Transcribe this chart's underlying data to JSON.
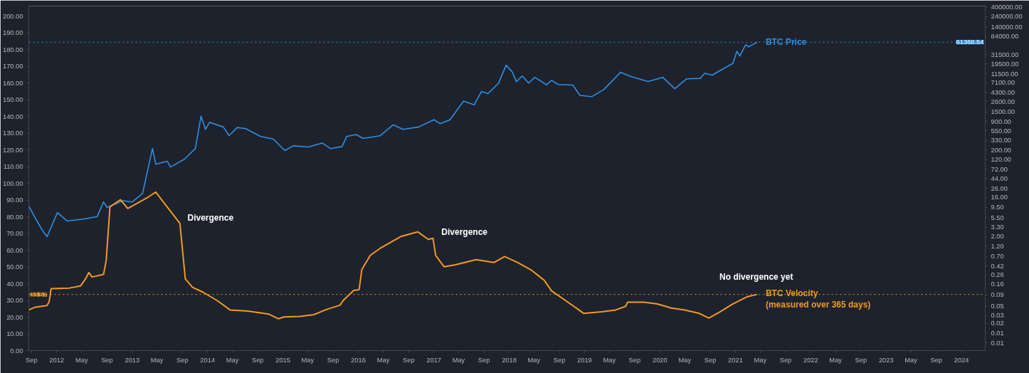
{
  "chart_data": {
    "type": "line",
    "xlim": [
      "2011-08-19",
      "2024-04-25"
    ],
    "xticks": [
      {
        "value": "2011-09",
        "label": "Sep"
      },
      {
        "value": "2012-01",
        "label": "2012"
      },
      {
        "value": "2012-05",
        "label": "May"
      },
      {
        "value": "2012-09",
        "label": "Sep"
      },
      {
        "value": "2013-01",
        "label": "2013"
      },
      {
        "value": "2013-05",
        "label": "May"
      },
      {
        "value": "2013-09",
        "label": "Sep"
      },
      {
        "value": "2014-01",
        "label": "2014"
      },
      {
        "value": "2014-05",
        "label": "May"
      },
      {
        "value": "2014-09",
        "label": "Sep"
      },
      {
        "value": "2015-01",
        "label": "2015"
      },
      {
        "value": "2015-05",
        "label": "May"
      },
      {
        "value": "2015-09",
        "label": "Sep"
      },
      {
        "value": "2016-01",
        "label": "2016"
      },
      {
        "value": "2016-05",
        "label": "May"
      },
      {
        "value": "2016-09",
        "label": "Sep"
      },
      {
        "value": "2017-01",
        "label": "2017"
      },
      {
        "value": "2017-05",
        "label": "May"
      },
      {
        "value": "2017-09",
        "label": "Sep"
      },
      {
        "value": "2018-01",
        "label": "2018"
      },
      {
        "value": "2018-05",
        "label": "May"
      },
      {
        "value": "2018-09",
        "label": "Sep"
      },
      {
        "value": "2019-01",
        "label": "2019"
      },
      {
        "value": "2019-05",
        "label": "May"
      },
      {
        "value": "2019-09",
        "label": "Sep"
      },
      {
        "value": "2020-01",
        "label": "2020"
      },
      {
        "value": "2020-05",
        "label": "May"
      },
      {
        "value": "2020-09",
        "label": "Sep"
      },
      {
        "value": "2021-01",
        "label": "2021"
      },
      {
        "value": "2021-05",
        "label": "May"
      },
      {
        "value": "2021-09",
        "label": "Sep"
      },
      {
        "value": "2022-01",
        "label": "2022"
      },
      {
        "value": "2022-05",
        "label": "May"
      },
      {
        "value": "2022-09",
        "label": "Sep"
      },
      {
        "value": "2023-01",
        "label": "2023"
      },
      {
        "value": "2023-05",
        "label": "May"
      },
      {
        "value": "2023-09",
        "label": "Sep"
      },
      {
        "value": "2024-01",
        "label": "2024"
      }
    ],
    "ylim": [
      0,
      206
    ],
    "yticks": [
      {
        "value": 0,
        "label": "0.00"
      },
      {
        "value": 10,
        "label": "10.00"
      },
      {
        "value": 20,
        "label": "20.00"
      },
      {
        "value": 30,
        "label": "30.00"
      },
      {
        "value": 40,
        "label": "40.00"
      },
      {
        "value": 50,
        "label": "50.00"
      },
      {
        "value": 60,
        "label": "60.00"
      },
      {
        "value": 70,
        "label": "70.00"
      },
      {
        "value": 80,
        "label": "80.00"
      },
      {
        "value": 90,
        "label": "90.00"
      },
      {
        "value": 100,
        "label": "100.00"
      },
      {
        "value": 110,
        "label": "110.00"
      },
      {
        "value": 120,
        "label": "120.00"
      },
      {
        "value": 130,
        "label": "130.00"
      },
      {
        "value": 140,
        "label": "140.00"
      },
      {
        "value": 150,
        "label": "150.00"
      },
      {
        "value": 160,
        "label": "160.00"
      },
      {
        "value": 170,
        "label": "170.00"
      },
      {
        "value": 180,
        "label": "180.00"
      },
      {
        "value": 190,
        "label": "190.00"
      },
      {
        "value": 200,
        "label": "200.00"
      }
    ],
    "y2lim": [
      0.0047,
      420000
    ],
    "y2ticks": [
      {
        "value": 400000,
        "label": "400000.00"
      },
      {
        "value": 240000,
        "label": "240000.00"
      },
      {
        "value": 140000,
        "label": "140000.00"
      },
      {
        "value": 84000,
        "label": "84000.00"
      },
      {
        "value": 31500,
        "label": "31500.00"
      },
      {
        "value": 19500,
        "label": "19500.00"
      },
      {
        "value": 11500,
        "label": "11500.00"
      },
      {
        "value": 7100,
        "label": "7100.00"
      },
      {
        "value": 4300,
        "label": "4300.00"
      },
      {
        "value": 2600,
        "label": "2600.00"
      },
      {
        "value": 1500,
        "label": "1500.00"
      },
      {
        "value": 900,
        "label": "900.00"
      },
      {
        "value": 550,
        "label": "550.00"
      },
      {
        "value": 330,
        "label": "330.00"
      },
      {
        "value": 200,
        "label": "200.00"
      },
      {
        "value": 120,
        "label": "120.00"
      },
      {
        "value": 72,
        "label": "72.00"
      },
      {
        "value": 44,
        "label": "44.00"
      },
      {
        "value": 26,
        "label": "26.00"
      },
      {
        "value": 16,
        "label": "16.00"
      },
      {
        "value": 9.5,
        "label": "9.50"
      },
      {
        "value": 5.5,
        "label": "5.50"
      },
      {
        "value": 3.3,
        "label": "3.30"
      },
      {
        "value": 2,
        "label": "2.00"
      },
      {
        "value": 1.2,
        "label": "1.20"
      },
      {
        "value": 0.7,
        "label": "0.70"
      },
      {
        "value": 0.42,
        "label": "0.42"
      },
      {
        "value": 0.26,
        "label": "0.26"
      },
      {
        "value": 0.16,
        "label": "0.16"
      },
      {
        "value": 0.09,
        "label": "0.09"
      },
      {
        "value": 0.05,
        "label": "0.05"
      },
      {
        "value": 0.03,
        "label": "0.03"
      },
      {
        "value": 0.02,
        "label": "0.02"
      },
      {
        "value": 0.012,
        "label": "0.01"
      },
      {
        "value": 0.0071,
        "label": "0.01"
      }
    ],
    "log": "y2",
    "line_style": "solid",
    "series": [
      {
        "name": "BTC Price",
        "color": "#2f8fe0",
        "axis": "y2",
        "x": [
          "2011-08-19",
          "2011-09-20",
          "2011-10-20",
          "2011-11-15",
          "2012-01-05",
          "2012-02-20",
          "2012-05-10",
          "2012-07-15",
          "2012-08-15",
          "2012-09-01",
          "2012-10-25",
          "2012-11-15",
          "2013-01-01",
          "2013-02-20",
          "2013-04-09",
          "2013-04-25",
          "2013-06-20",
          "2013-07-05",
          "2013-09-10",
          "2013-11-03",
          "2013-11-30",
          "2013-12-22",
          "2014-01-10",
          "2014-03-18",
          "2014-04-15",
          "2014-05-25",
          "2014-07-05",
          "2014-09-15",
          "2014-11-15",
          "2015-01-10",
          "2015-02-20",
          "2015-05-05",
          "2015-07-10",
          "2015-08-20",
          "2015-10-15",
          "2015-11-05",
          "2015-12-22",
          "2016-01-25",
          "2016-04-15",
          "2016-06-18",
          "2016-08-05",
          "2016-10-20",
          "2017-01-01",
          "2017-02-01",
          "2017-03-20",
          "2017-05-25",
          "2017-07-15",
          "2017-08-20",
          "2017-09-20",
          "2017-11-10",
          "2017-12-17",
          "2018-01-15",
          "2018-02-05",
          "2018-03-05",
          "2018-04-05",
          "2018-05-05",
          "2018-07-01",
          "2018-07-25",
          "2018-08-27",
          "2018-11-05",
          "2018-12-10",
          "2019-02-05",
          "2019-04-05",
          "2019-06-25",
          "2019-08-10",
          "2019-11-05",
          "2020-01-15",
          "2020-03-13",
          "2020-05-10",
          "2020-07-15",
          "2020-08-05",
          "2020-09-10",
          "2020-10-20",
          "2020-12-20",
          "2021-01-08",
          "2021-01-22",
          "2021-02-20",
          "2021-03-05",
          "2021-04-16"
        ],
        "values": [
          10.1,
          5.3,
          3.0,
          2.0,
          7.2,
          4.6,
          5.1,
          5.8,
          12.7,
          9.5,
          12,
          13.5,
          12.6,
          20,
          216,
          94,
          110,
          81,
          122,
          216,
          1200,
          600,
          873,
          680,
          430,
          660,
          620,
          410,
          360,
          194,
          250,
          235,
          290,
          215,
          240,
          410,
          455,
          370,
          425,
          760,
          600,
          680,
          1000,
          810,
          1000,
          2700,
          2200,
          4500,
          4000,
          6900,
          18100,
          12900,
          7600,
          10200,
          7000,
          9500,
          6400,
          8100,
          6500,
          6300,
          3650,
          3400,
          5000,
          12500,
          10000,
          7600,
          9500,
          5200,
          8800,
          9000,
          11800,
          10700,
          13700,
          20000,
          38000,
          29500,
          54000,
          48000,
          61368.54
        ]
      },
      {
        "name": "BTC Velocity\n(measured over 365 days)",
        "color": "#f29a1f",
        "x": [
          "2011-08-19",
          "2011-09-20",
          "2011-11-15",
          "2011-11-25",
          "2011-12-05",
          "2012-03-03",
          "2012-04-25",
          "2012-05-20",
          "2012-06-05",
          "2012-06-20",
          "2012-08-15",
          "2012-08-28",
          "2012-09-15",
          "2012-11-05",
          "2012-12-10",
          "2013-01-03",
          "2013-03-12",
          "2013-04-25",
          "2013-06-15",
          "2013-08-20",
          "2013-09-15",
          "2013-10-20",
          "2013-12-10",
          "2014-02-15",
          "2014-04-20",
          "2014-07-15",
          "2014-10-25",
          "2014-12-10",
          "2015-01-05",
          "2015-03-25",
          "2015-06-01",
          "2015-07-25",
          "2015-10-05",
          "2015-10-20",
          "2015-12-10",
          "2016-01-05",
          "2016-01-18",
          "2016-02-28",
          "2016-04-15",
          "2016-07-25",
          "2016-10-15",
          "2016-12-05",
          "2016-12-28",
          "2017-01-10",
          "2017-02-20",
          "2017-04-15",
          "2017-07-25",
          "2017-10-20",
          "2017-12-10",
          "2018-02-10",
          "2018-04-15",
          "2018-06-20",
          "2018-07-25",
          "2018-09-30",
          "2018-12-05",
          "2018-12-28",
          "2019-03-25",
          "2019-06-01",
          "2019-07-20",
          "2019-07-28",
          "2019-10-15",
          "2019-12-20",
          "2020-02-25",
          "2020-05-01",
          "2020-07-10",
          "2020-08-25",
          "2020-10-15",
          "2020-12-20",
          "2021-02-25",
          "2021-04-16"
        ],
        "values": [
          24.3,
          26,
          26.9,
          29,
          37,
          37.4,
          38.6,
          42.9,
          46.7,
          44,
          45.5,
          54,
          85.9,
          90.2,
          85,
          86.6,
          91.2,
          94.8,
          86.6,
          76,
          42.9,
          37.8,
          34.9,
          30,
          24.3,
          23.6,
          21.8,
          19,
          20.1,
          20.4,
          21.5,
          24.3,
          27.2,
          30,
          36,
          36.4,
          48.4,
          56.9,
          61.1,
          68.2,
          71,
          66.5,
          67.1,
          56.9,
          50.1,
          51.3,
          54.4,
          52.7,
          56.2,
          52.7,
          48.4,
          42,
          35.7,
          30,
          24.3,
          22.2,
          23.2,
          24.3,
          26.5,
          28.9,
          28.9,
          27.9,
          25.4,
          24.3,
          22.2,
          19.4,
          22.9,
          27.9,
          32.1,
          33.57
        ]
      }
    ],
    "ref_lines": [
      {
        "axis": "y",
        "value": 33.57,
        "label": "33.57",
        "color": "#f29a1f",
        "line_style": "dotted"
      },
      {
        "axis": "y2",
        "value": 61368.54,
        "label": "61368.54",
        "color": "#2f8fe0",
        "line_style": "dotted"
      }
    ],
    "annotations": [
      "Divergence",
      "Divergence",
      "No divergence yet"
    ]
  }
}
